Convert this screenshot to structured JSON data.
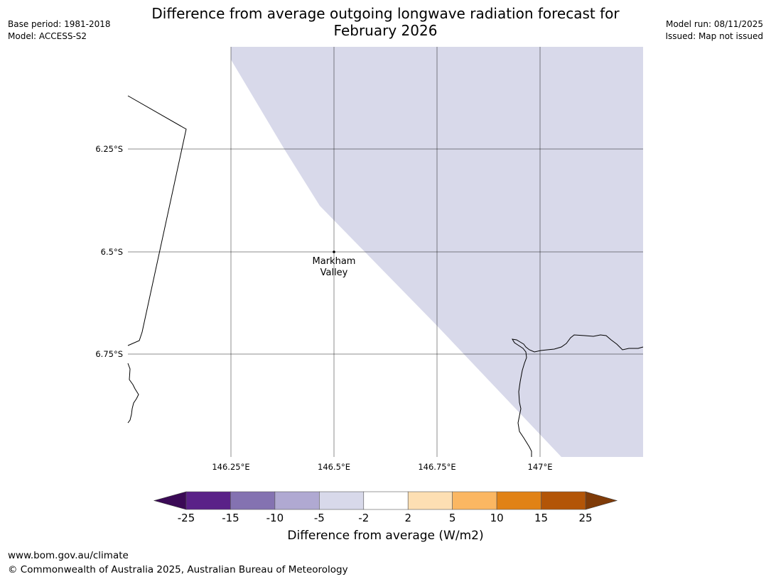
{
  "header": {
    "title_line1": "Difference from average outgoing longwave radiation forecast for",
    "title_line2": "February 2026",
    "base_period": "Base period: 1981-2018",
    "model": "Model: ACCESS-S2",
    "model_run": "Model run: 08/11/2025",
    "issued": "Issued: Map not issued"
  },
  "map": {
    "lat_labels": [
      "6.25°S",
      "6.5°S",
      "6.75°S"
    ],
    "lon_labels": [
      "146.25°E",
      "146.5°E",
      "146.75°E",
      "147°E"
    ],
    "place": {
      "name_line1": "Markham",
      "name_line2": "Valley"
    },
    "shaded_category": "-5 to -2",
    "shaded_color": "#d8d9ea"
  },
  "colorbar": {
    "ticks": [
      "-25",
      "-15",
      "-10",
      "-5",
      "-2",
      "2",
      "5",
      "10",
      "15",
      "25"
    ],
    "colors": [
      "#5a2188",
      "#8472b1",
      "#b0a9d2",
      "#d8d9ea",
      "#ffffff",
      "#fddfb3",
      "#fbb762",
      "#e18215",
      "#b35507"
    ],
    "extend_low_color": "#3b0a56",
    "extend_high_color": "#7f3b08",
    "label": "Difference from average (W/m2)"
  },
  "footer": {
    "url": "www.bom.gov.au/climate",
    "copyright": "© Commonwealth of Australia 2025, Australian Bureau of Meteorology"
  }
}
